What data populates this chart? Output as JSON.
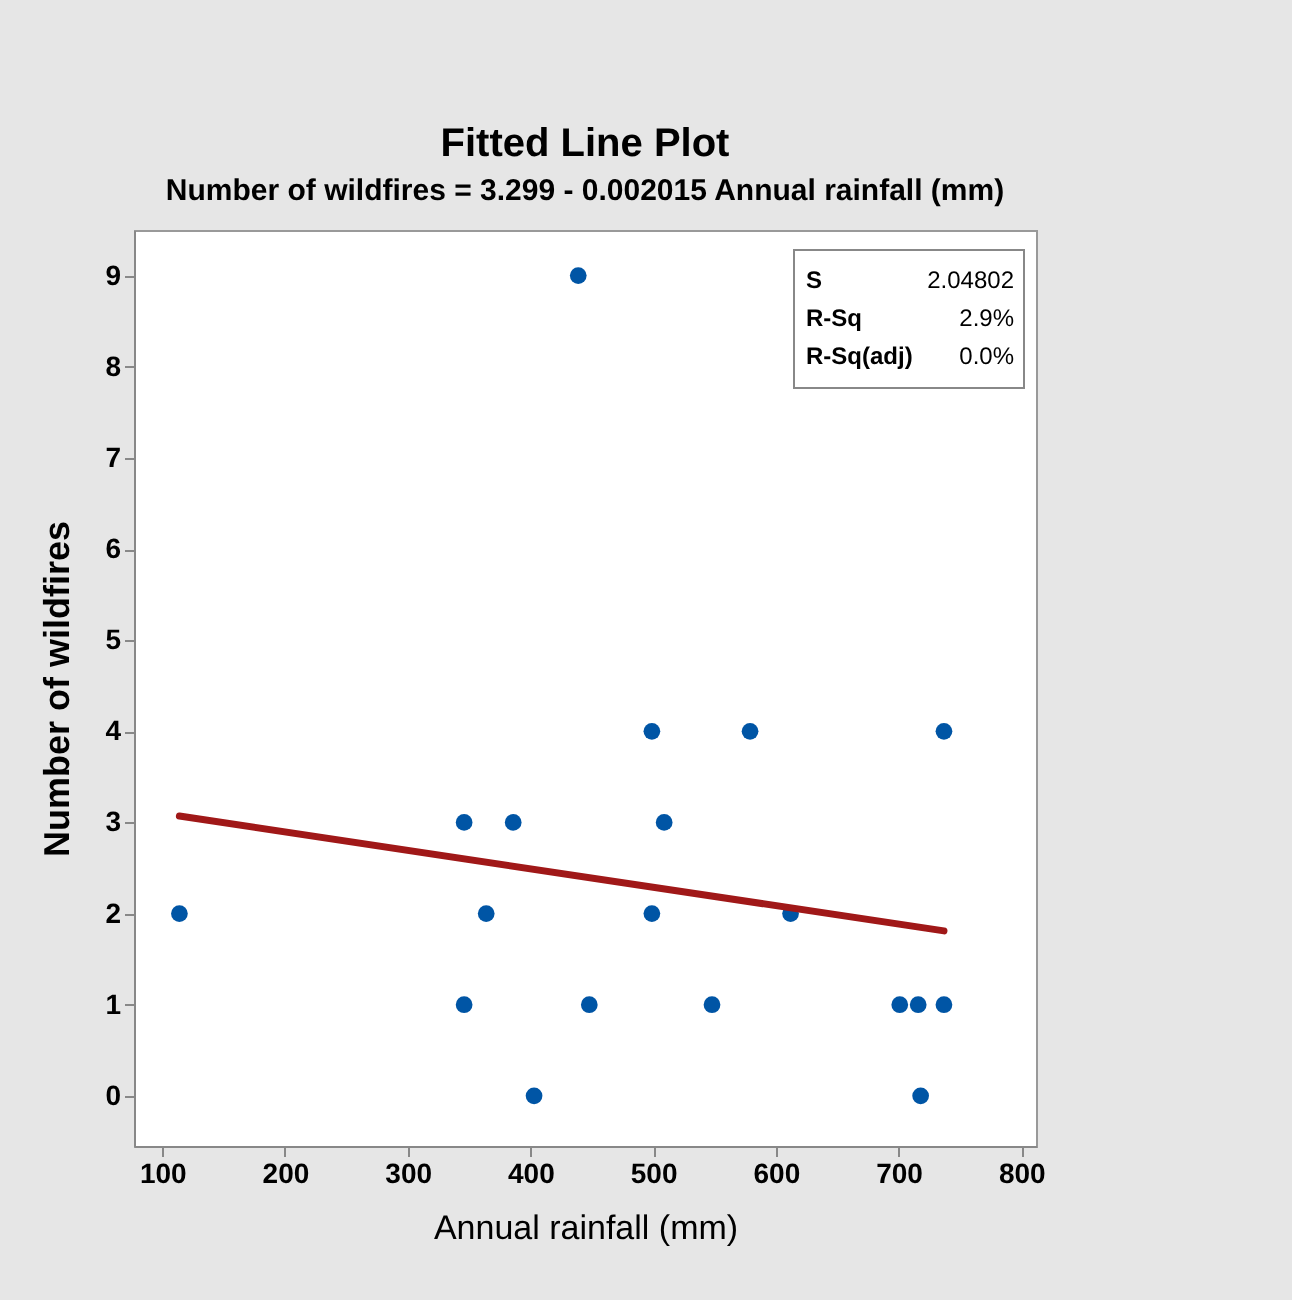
{
  "chart_data": {
    "type": "scatter",
    "title": "Fitted Line Plot",
    "subtitle": "Number of wildfires = 3.299 - 0.002015 Annual rainfall (mm)",
    "xlabel": "Annual rainfall (mm)",
    "ylabel": "Number of wildfires",
    "series": [
      {
        "marker": "circle",
        "color": "#0055a5",
        "x": [
          114,
          346,
          346,
          364,
          386,
          403,
          439,
          448,
          499,
          499,
          509,
          548,
          579,
          612,
          701,
          716,
          718,
          737,
          737
        ],
        "values": [
          2,
          3,
          1,
          2,
          3,
          0,
          9,
          1,
          4,
          2,
          3,
          1,
          4,
          2,
          1,
          1,
          0,
          4,
          1
        ]
      },
      {
        "type": "line",
        "color": "#a01818",
        "x": [
          114,
          737
        ],
        "values": [
          3.07,
          1.81
        ]
      }
    ],
    "annotations": [
      "S 2.04802",
      "R-Sq 2.9%",
      "R-Sq(adj) 0.0%"
    ],
    "xlim": [
      77,
      812
    ],
    "xticks": [
      100,
      200,
      300,
      400,
      500,
      600,
      700,
      800
    ],
    "ylim": [
      -0.55,
      9.5
    ],
    "yticks": [
      0,
      1,
      2,
      3,
      4,
      5,
      6,
      7,
      8,
      9
    ],
    "line_style": "solid"
  }
}
